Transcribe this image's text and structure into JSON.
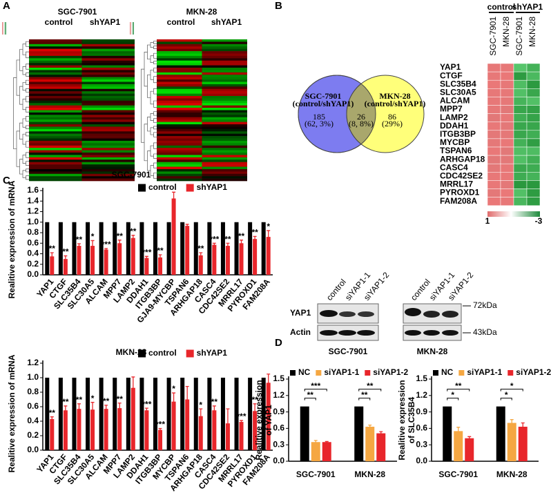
{
  "panel_labels": [
    "A",
    "B",
    "C",
    "D"
  ],
  "heatmap_a": [
    {
      "title": "SGC-7901",
      "columns": [
        "control",
        "shYAP1"
      ]
    },
    {
      "title": "MKN-28",
      "columns": [
        "control",
        "shYAP1"
      ]
    }
  ],
  "venn": {
    "left": {
      "title": "SGC-7901",
      "subtitle": "(control/shYAP1)",
      "count": 185,
      "percent": "(62, 3%)"
    },
    "overlap": {
      "count": 26,
      "percent": "(8, 8%)"
    },
    "right": {
      "title": "MKN-28",
      "subtitle": "(control/shYAP1)",
      "count": 86,
      "percent": "(29%)"
    }
  },
  "heatmap_b": {
    "groups": [
      {
        "name": "control",
        "columns": [
          "SGC-7901",
          "MKN-28"
        ]
      },
      {
        "name": "shYAP1",
        "columns": [
          "SGC-7901",
          "MKN-28"
        ]
      }
    ],
    "genes": [
      "YAP1",
      "CTGF",
      "SLC35B4",
      "SLC30A5",
      "ALCAM",
      "MPP7",
      "LAMP2",
      "DDAH1",
      "ITGB3BP",
      "MYCBP",
      "TSPAN6",
      "ARHGAP18",
      "CASC4",
      "CDC42SE2",
      "MRRL17",
      "PYROXD1",
      "FAM208A"
    ],
    "scale": [
      1,
      -3
    ]
  },
  "blot": {
    "lanes": [
      {
        "cell": "SGC-7901",
        "labels": [
          "control",
          "siYAP1-1",
          "siYAP1-2"
        ]
      },
      {
        "cell": "MKN-28",
        "labels": [
          "control",
          "siYAP1-1",
          "siYAP1-2"
        ]
      }
    ],
    "rows": [
      "YAP1",
      "Actin"
    ],
    "markers": [
      "72kDa",
      "43kDa"
    ]
  },
  "chart_data": [
    {
      "type": "bar",
      "title": "SGC-7901",
      "ylabel": "Realitive expression of mRNA",
      "categories": [
        "YAP1",
        "CTGF",
        "SLC35B4",
        "SLC30A5",
        "ALCAM",
        "MPP7",
        "LAMP2",
        "DDAH1",
        "ITGB3BP",
        "GJA9-MYCBP",
        "TSPAN6",
        "ARHGAP18",
        "CASC4",
        "CDC42SE2",
        "MRRL17",
        "PYROXD1",
        "FAM208A"
      ],
      "series": [
        {
          "name": "control",
          "color": "#000000",
          "values": [
            1,
            1,
            1,
            1,
            1,
            1,
            1,
            1,
            1,
            1,
            1,
            1,
            1,
            1,
            1,
            1,
            1
          ]
        },
        {
          "name": "shYAP1",
          "color": "#e8262b",
          "values": [
            0.35,
            0.3,
            0.55,
            0.55,
            0.48,
            0.6,
            0.7,
            0.32,
            0.33,
            1.45,
            0.93,
            0.37,
            0.57,
            0.55,
            0.6,
            0.68,
            0.72
          ],
          "errors": [
            0.07,
            0.06,
            0.04,
            0.1,
            0.02,
            0.06,
            0.05,
            0.03,
            0.05,
            0.12,
            0.03,
            0.05,
            0.03,
            0.05,
            0.06,
            0.05,
            0.12
          ]
        }
      ],
      "annotations": [
        "**",
        "**",
        "**",
        "*",
        "***",
        "**",
        "**",
        "***",
        "**",
        null,
        null,
        "**",
        "***",
        "**",
        "**",
        "**",
        "*"
      ],
      "ylim": [
        0,
        1.6
      ],
      "yticks": [
        {
          "value": 0,
          "label": "0.0"
        },
        0.2,
        0.4,
        0.6,
        0.8,
        {
          "value": 1,
          "label": "1.0"
        },
        1.2,
        1.4,
        1.6
      ],
      "legend": "top-right"
    },
    {
      "type": "bar",
      "title": "MKN-28",
      "ylabel": "Realitive expression of mRNA",
      "categories": [
        "YAP1",
        "CTGF",
        "SLC35B4",
        "SLC30A5",
        "ALCAM",
        "MPP7",
        "LAMP2",
        "DDAH1",
        "ITGB3BP",
        "MYCBP",
        "TSPAN6",
        "ARHGAP18",
        "CASC4",
        "CDC42SE2",
        "MRRL17",
        "PYROXD1",
        "FAM208A"
      ],
      "series": [
        {
          "name": "control",
          "color": "#000000",
          "values": [
            1,
            1,
            1,
            1,
            1,
            1,
            1,
            1,
            1,
            1,
            1,
            1,
            1,
            1,
            1,
            1,
            1
          ]
        },
        {
          "name": "shYAP1",
          "color": "#e8262b",
          "values": [
            0.43,
            0.55,
            0.57,
            0.56,
            0.57,
            0.58,
            0.86,
            0.55,
            0.28,
            0.67,
            0.7,
            0.47,
            0.55,
            0.37,
            0.39,
            0.54,
            0.93
          ],
          "errors": [
            0.03,
            0.06,
            0.07,
            0.1,
            0.05,
            0.07,
            0.15,
            0.03,
            0.02,
            0.12,
            0.18,
            0.1,
            0.06,
            0.2,
            0.02,
            0.1,
            0.12
          ]
        }
      ],
      "annotations": [
        "**",
        "**",
        "**",
        "*",
        "**",
        "**",
        null,
        "***",
        "***",
        "*",
        null,
        "*",
        "**",
        null,
        "***",
        "**",
        null
      ],
      "ylim": [
        0,
        1.2
      ],
      "yticks": [
        {
          "value": 0,
          "label": "0.0"
        },
        0.2,
        0.4,
        0.6,
        0.8,
        {
          "value": 1,
          "label": "1.0"
        },
        1.2
      ],
      "legend": "top-right"
    },
    {
      "type": "bar",
      "ylabel": [
        "Realitive expression",
        "of YAP1"
      ],
      "categories": [
        "SGC-7901",
        "MKN-28"
      ],
      "series": [
        {
          "name": "NC",
          "color": "#000000",
          "values": [
            1,
            1
          ]
        },
        {
          "name": "siYAP1-1",
          "color": "#f5a742",
          "values": [
            0.35,
            0.63
          ],
          "errors": [
            0.03,
            0.03
          ]
        },
        {
          "name": "siYAP1-2",
          "color": "#e8262b",
          "values": [
            0.35,
            0.51
          ],
          "errors": [
            0.01,
            0.03
          ]
        }
      ],
      "annotations": [
        [
          "**",
          "***"
        ],
        [
          "**",
          "**"
        ]
      ],
      "ylim": [
        0,
        1.5
      ],
      "yticks": [
        {
          "value": 0,
          "label": "0.0"
        },
        0.3,
        0.6,
        0.9,
        1.2,
        1.5
      ],
      "legend": "top"
    },
    {
      "type": "bar",
      "ylabel": [
        "Realitive expression",
        "of SLC35B4"
      ],
      "categories": [
        "SGC-7901",
        "MKN-28"
      ],
      "series": [
        {
          "name": "NC",
          "color": "#000000",
          "values": [
            1,
            1
          ]
        },
        {
          "name": "siYAP1-1",
          "color": "#f5a742",
          "values": [
            0.55,
            0.7
          ],
          "errors": [
            0.07,
            0.06
          ]
        },
        {
          "name": "siYAP1-2",
          "color": "#e8262b",
          "values": [
            0.42,
            0.63
          ],
          "errors": [
            0.03,
            0.07
          ]
        }
      ],
      "annotations": [
        [
          "*",
          "**"
        ],
        [
          "*",
          "*"
        ]
      ],
      "ylim": [
        0,
        1.5
      ],
      "yticks": [
        {
          "value": 0,
          "label": "0.0"
        },
        0.3,
        0.6,
        0.9,
        1.2,
        1.5
      ],
      "legend": "top"
    }
  ]
}
